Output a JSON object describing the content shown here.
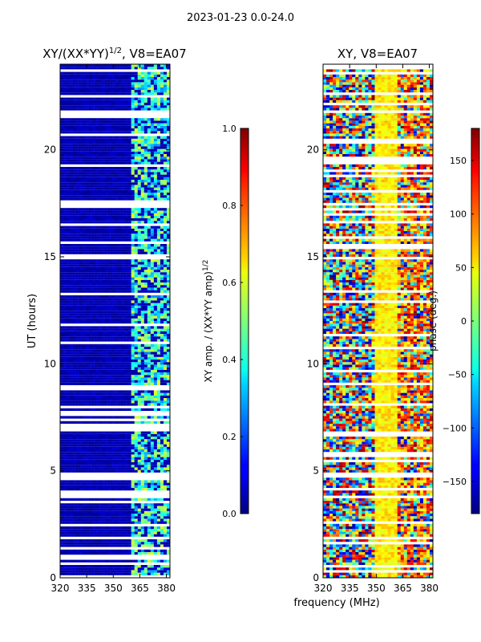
{
  "figure_title": "2023-01-23 0.0-24.0",
  "chart_data": [
    {
      "type": "heatmap",
      "title": "XY/(XX*YY)",
      "title_sup": "1/2",
      "title_suffix": ", V8=EA07",
      "xlabel": "",
      "ylabel": "UT (hours)",
      "xlim": [
        320,
        382
      ],
      "ylim": [
        0,
        24
      ],
      "xticks": [
        320,
        335,
        350,
        365,
        380
      ],
      "yticks": [
        0,
        5,
        10,
        15,
        20
      ],
      "colorbar": {
        "label": "XY amp. / (XX*YY amp)",
        "label_sup": "1/2",
        "range": [
          0.0,
          1.0
        ],
        "ticks": [
          "0.0",
          "0.2",
          "0.4",
          "0.6",
          "0.8",
          "1.0"
        ],
        "colormap": "jet"
      }
    },
    {
      "type": "heatmap",
      "title": "XY, V8=EA07",
      "xlabel": "frequency (MHz)",
      "ylabel": "",
      "xlim": [
        320,
        382
      ],
      "ylim": [
        0,
        24
      ],
      "xticks": [
        320,
        335,
        350,
        365,
        380
      ],
      "yticks": [
        0,
        5,
        10,
        15,
        20
      ],
      "colorbar": {
        "label": "phase (deg.)",
        "range": [
          -180,
          180
        ],
        "ticks": [
          "−150",
          "−100",
          "−50",
          "0",
          "50",
          "100",
          "150"
        ],
        "colormap": "jet"
      }
    }
  ]
}
